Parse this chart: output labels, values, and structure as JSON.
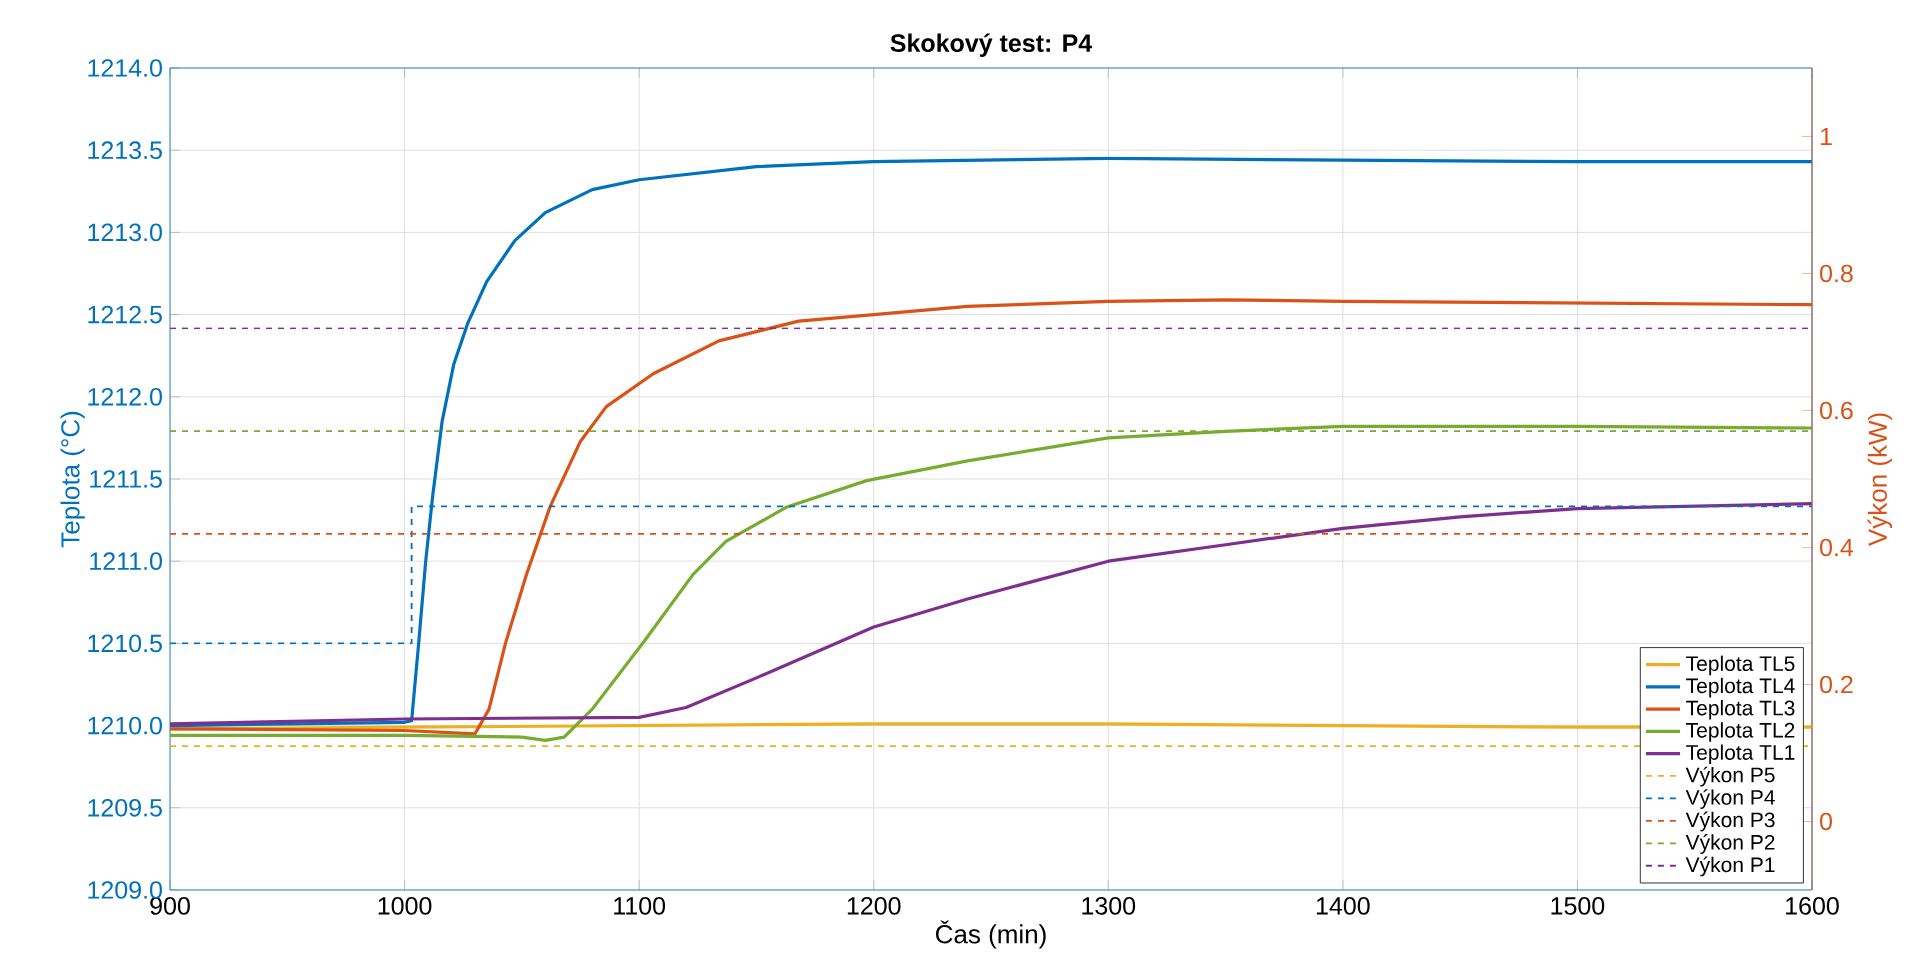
{
  "chart_data": {
    "type": "line",
    "title": "Skokový test: P4",
    "xlabel": "Čas (min)",
    "ylabel": "Teplota (°C)",
    "y2label": "Výkon (kW)",
    "xlim": [
      900,
      1600
    ],
    "xticks": [
      900,
      1000,
      1100,
      1200,
      1300,
      1400,
      1500,
      1600
    ],
    "ylim": [
      1209,
      1214
    ],
    "yticks": [
      {
        "value": 1209,
        "label": "1209.0"
      },
      {
        "value": 1209.5,
        "label": "1209.5"
      },
      {
        "value": 1210,
        "label": "1210.0"
      },
      {
        "value": 1210.5,
        "label": "1210.5"
      },
      {
        "value": 1211,
        "label": "1211.0"
      },
      {
        "value": 1211.5,
        "label": "1211.5"
      },
      {
        "value": 1212,
        "label": "1212.0"
      },
      {
        "value": 1212.5,
        "label": "1212.5"
      },
      {
        "value": 1213,
        "label": "1213.0"
      },
      {
        "value": 1213.5,
        "label": "1213.5"
      },
      {
        "value": 1214,
        "label": "1214.0"
      }
    ],
    "y2lim": [
      -0.1,
      1.1
    ],
    "y2ticks": [
      0,
      0.2,
      0.4,
      0.6,
      0.8,
      1
    ],
    "grid": true,
    "legend": "bottom right",
    "series": [
      {
        "name": "Teplota TL5",
        "color": "#edb120",
        "line_style": "solid",
        "x": [
          900,
          1000,
          1100,
          1200,
          1300,
          1400,
          1500,
          1600
        ],
        "values": [
          1209.98,
          1209.99,
          1210.0,
          1210.01,
          1210.01,
          1210.0,
          1209.99,
          1209.99
        ]
      },
      {
        "name": "Teplota TL4",
        "color": "#0072bd",
        "line_style": "solid",
        "x": [
          900,
          1000,
          1003,
          1006,
          1009,
          1012,
          1016,
          1021,
          1027,
          1035,
          1047,
          1060,
          1080,
          1100,
          1150,
          1200,
          1300,
          1400,
          1500,
          1600
        ],
        "values": [
          1210.0,
          1210.02,
          1210.03,
          1210.5,
          1211.0,
          1211.4,
          1211.85,
          1212.2,
          1212.45,
          1212.7,
          1212.95,
          1213.12,
          1213.26,
          1213.32,
          1213.4,
          1213.43,
          1213.45,
          1213.44,
          1213.43,
          1213.43
        ]
      },
      {
        "name": "Teplota TL3",
        "color": "#d95319",
        "line_style": "solid",
        "x": [
          900,
          1000,
          1030,
          1036,
          1043,
          1052,
          1062,
          1075,
          1086,
          1106,
          1134,
          1168,
          1200,
          1240,
          1300,
          1350,
          1400,
          1500,
          1600
        ],
        "values": [
          1209.98,
          1209.97,
          1209.95,
          1210.1,
          1210.5,
          1210.92,
          1211.33,
          1211.73,
          1211.94,
          1212.14,
          1212.34,
          1212.46,
          1212.5,
          1212.55,
          1212.58,
          1212.59,
          1212.58,
          1212.57,
          1212.56
        ]
      },
      {
        "name": "Teplota TL2",
        "color": "#77ac30",
        "line_style": "solid",
        "x": [
          900,
          1000,
          1050,
          1060,
          1068,
          1080,
          1102,
          1123,
          1137,
          1163,
          1197,
          1240,
          1300,
          1350,
          1400,
          1500,
          1600
        ],
        "values": [
          1209.94,
          1209.94,
          1209.93,
          1209.91,
          1209.93,
          1210.1,
          1210.51,
          1210.92,
          1211.12,
          1211.33,
          1211.49,
          1211.61,
          1211.75,
          1211.79,
          1211.82,
          1211.82,
          1211.81
        ]
      },
      {
        "name": "Teplota TL1",
        "color": "#7e2f8e",
        "line_style": "solid",
        "x": [
          900,
          1000,
          1100,
          1120,
          1150,
          1200,
          1240,
          1300,
          1350,
          1400,
          1450,
          1500,
          1600
        ],
        "values": [
          1210.01,
          1210.04,
          1210.05,
          1210.11,
          1210.29,
          1210.6,
          1210.77,
          1211.0,
          1211.1,
          1211.2,
          1211.27,
          1211.32,
          1211.35
        ]
      },
      {
        "name": "Výkon P5",
        "color": "#edb120",
        "line_style": "dashed",
        "axis": "y2",
        "x": [
          900,
          1600
        ],
        "values": [
          0.11,
          0.11
        ]
      },
      {
        "name": "Výkon P4",
        "color": "#0072bd",
        "line_style": "dashed",
        "axis": "y2",
        "x": [
          900,
          1003,
          1003,
          1600
        ],
        "values": [
          0.26,
          0.26,
          0.46,
          0.46
        ]
      },
      {
        "name": "Výkon P3",
        "color": "#d95319",
        "line_style": "dashed",
        "axis": "y2",
        "x": [
          900,
          1600
        ],
        "values": [
          0.42,
          0.42
        ]
      },
      {
        "name": "Výkon P2",
        "color": "#77ac30",
        "line_style": "dashed",
        "axis": "y2",
        "x": [
          900,
          1600
        ],
        "values": [
          0.57,
          0.57
        ]
      },
      {
        "name": "Výkon P1",
        "color": "#7e2f8e",
        "line_style": "dashed",
        "axis": "y2",
        "x": [
          900,
          1600
        ],
        "values": [
          0.72,
          0.72
        ]
      }
    ]
  }
}
